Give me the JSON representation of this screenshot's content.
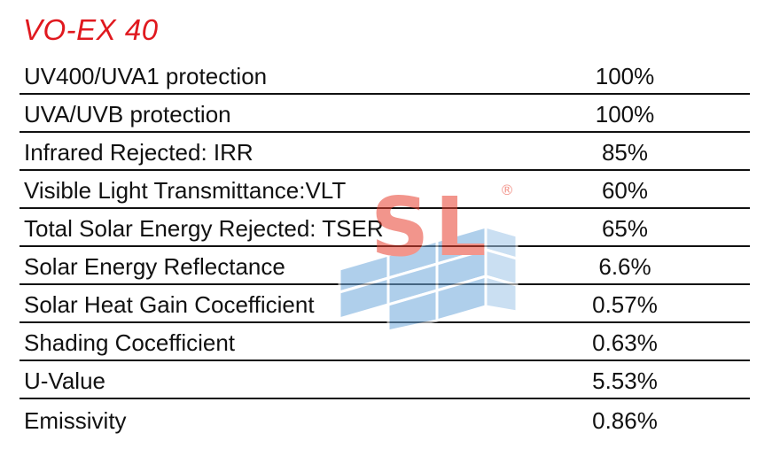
{
  "title": "VO-EX 40",
  "watermark": {
    "letters": "SL",
    "registered_mark": "®",
    "letter_color": "#e8402f",
    "tile_color": "#6fa8dc"
  },
  "rows": [
    {
      "label": "UV400/UVA1 protection",
      "value": "100%"
    },
    {
      "label": "UVA/UVB protection",
      "value": "100%"
    },
    {
      "label": "Infrared Rejected: IRR",
      "value": "85%"
    },
    {
      "label": "Visible Light Transmittance:VLT",
      "value": "60%"
    },
    {
      "label": "Total Solar Energy Rejected: TSER",
      "value": "65%"
    },
    {
      "label": "Solar Energy Reflectance",
      "value": "6.6%"
    },
    {
      "label": "Solar Heat Gain Cocefficient",
      "value": "0.57%"
    },
    {
      "label": "Shading Cocefficient",
      "value": "0.63%"
    },
    {
      "label": "U-Value",
      "value": "5.53%"
    },
    {
      "label": "Emissivity",
      "value": "0.86%"
    }
  ]
}
